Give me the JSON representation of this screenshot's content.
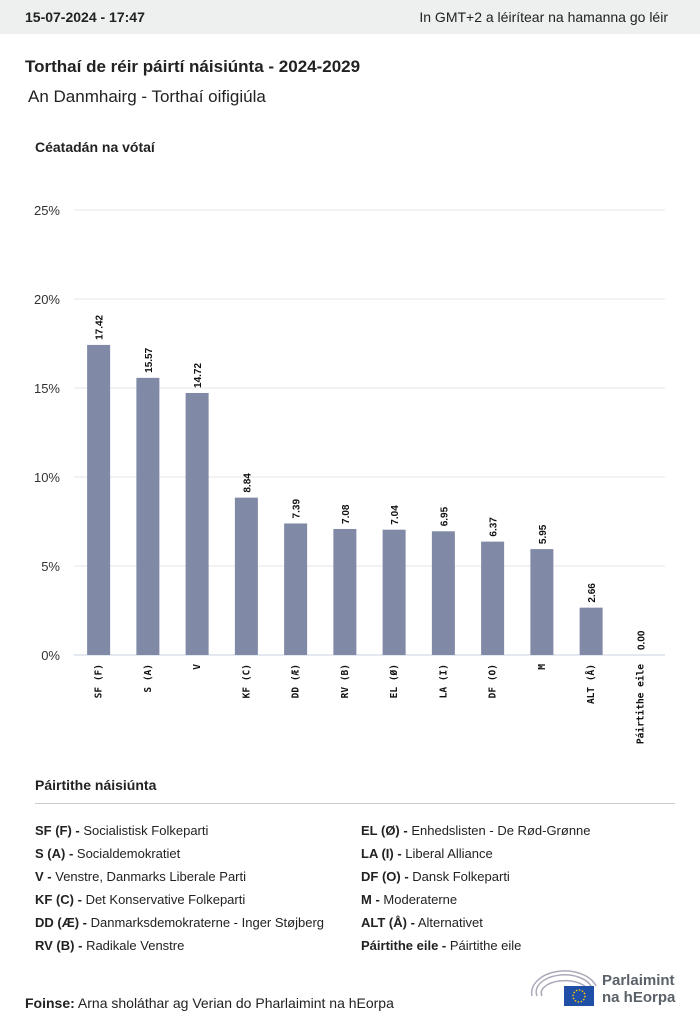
{
  "header": {
    "datetime": "15-07-2024 - 17:47",
    "timezone_note": "In GMT+2 a léirítear na hamanna go léir"
  },
  "title": "Torthaí de réir páirtí náisiúnta - 2024-2029",
  "subtitle": "An Danmhairg - Torthaí oifigiúla",
  "chart_data": {
    "type": "bar",
    "ylabel": "Céatadán na vótaí",
    "ylim": [
      0,
      25
    ],
    "yticks": [
      "0%",
      "5%",
      "10%",
      "15%",
      "20%",
      "25%"
    ],
    "ytick_values": [
      0,
      5,
      10,
      15,
      20,
      25
    ],
    "categories": [
      "SF (F)",
      "S (A)",
      "V",
      "KF (C)",
      "DD (Æ)",
      "RV (B)",
      "EL (Ø)",
      "LA (I)",
      "DF (O)",
      "M",
      "ALT (Å)",
      "Páirtithe eile"
    ],
    "values": [
      17.42,
      15.57,
      14.72,
      8.84,
      7.39,
      7.08,
      7.04,
      6.95,
      6.37,
      5.95,
      2.66,
      0.0
    ],
    "labels": [
      "17.42",
      "15.57",
      "14.72",
      "8.84",
      "7.39",
      "7.08",
      "7.04",
      "6.95",
      "6.37",
      "5.95",
      "2.66",
      "0.00"
    ],
    "bar_color": "#8089a6"
  },
  "legend": {
    "title": "Páirtithe náisiúnta",
    "items": [
      {
        "abbr": "SF (F) -",
        "name": "Socialistisk Folkeparti"
      },
      {
        "abbr": "S (A) -",
        "name": "Socialdemokratiet"
      },
      {
        "abbr": "V -",
        "name": "Venstre, Danmarks Liberale Parti"
      },
      {
        "abbr": "KF (C) -",
        "name": "Det Konservative Folkeparti"
      },
      {
        "abbr": "DD (Æ) -",
        "name": "Danmarksdemokraterne - Inger Støjberg"
      },
      {
        "abbr": "RV (B) -",
        "name": "Radikale Venstre"
      },
      {
        "abbr": "EL (Ø) -",
        "name": "Enhedslisten - De Rød-Grønne"
      },
      {
        "abbr": "LA (I) -",
        "name": "Liberal Alliance"
      },
      {
        "abbr": "DF (O) -",
        "name": "Dansk Folkeparti"
      },
      {
        "abbr": "M -",
        "name": "Moderaterne"
      },
      {
        "abbr": "ALT (Å) -",
        "name": "Alternativet"
      },
      {
        "abbr": "Páirtithe eile -",
        "name": "Páirtithe eile"
      }
    ]
  },
  "source": {
    "label": "Foinse:",
    "text": "Arna sholáthar ag Verian do Pharlaimint na hEorpa"
  },
  "logo": {
    "line1": "Parlaimint",
    "line2": "na hEorpa"
  }
}
